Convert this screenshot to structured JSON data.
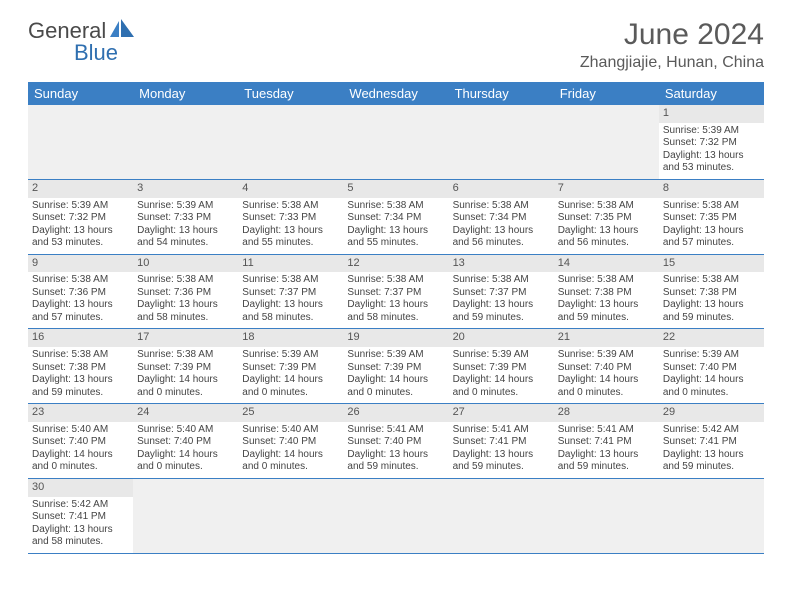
{
  "logo": {
    "text1": "General",
    "text2": "Blue"
  },
  "title": "June 2024",
  "location": "Zhangjiajie, Hunan, China",
  "colors": {
    "header_bg": "#3b7fc4",
    "header_fg": "#ffffff",
    "daynum_bg": "#e8e8e8",
    "empty_bg": "#f0f0f0",
    "border": "#3b7fc4",
    "logo_gray": "#4a4a4a",
    "logo_blue": "#2f6fb0"
  },
  "day_headers": [
    "Sunday",
    "Monday",
    "Tuesday",
    "Wednesday",
    "Thursday",
    "Friday",
    "Saturday"
  ],
  "weeks": [
    [
      null,
      null,
      null,
      null,
      null,
      null,
      {
        "n": "1",
        "sr": "Sunrise: 5:39 AM",
        "ss": "Sunset: 7:32 PM",
        "dl": "Daylight: 13 hours and 53 minutes."
      }
    ],
    [
      {
        "n": "2",
        "sr": "Sunrise: 5:39 AM",
        "ss": "Sunset: 7:32 PM",
        "dl": "Daylight: 13 hours and 53 minutes."
      },
      {
        "n": "3",
        "sr": "Sunrise: 5:39 AM",
        "ss": "Sunset: 7:33 PM",
        "dl": "Daylight: 13 hours and 54 minutes."
      },
      {
        "n": "4",
        "sr": "Sunrise: 5:38 AM",
        "ss": "Sunset: 7:33 PM",
        "dl": "Daylight: 13 hours and 55 minutes."
      },
      {
        "n": "5",
        "sr": "Sunrise: 5:38 AM",
        "ss": "Sunset: 7:34 PM",
        "dl": "Daylight: 13 hours and 55 minutes."
      },
      {
        "n": "6",
        "sr": "Sunrise: 5:38 AM",
        "ss": "Sunset: 7:34 PM",
        "dl": "Daylight: 13 hours and 56 minutes."
      },
      {
        "n": "7",
        "sr": "Sunrise: 5:38 AM",
        "ss": "Sunset: 7:35 PM",
        "dl": "Daylight: 13 hours and 56 minutes."
      },
      {
        "n": "8",
        "sr": "Sunrise: 5:38 AM",
        "ss": "Sunset: 7:35 PM",
        "dl": "Daylight: 13 hours and 57 minutes."
      }
    ],
    [
      {
        "n": "9",
        "sr": "Sunrise: 5:38 AM",
        "ss": "Sunset: 7:36 PM",
        "dl": "Daylight: 13 hours and 57 minutes."
      },
      {
        "n": "10",
        "sr": "Sunrise: 5:38 AM",
        "ss": "Sunset: 7:36 PM",
        "dl": "Daylight: 13 hours and 58 minutes."
      },
      {
        "n": "11",
        "sr": "Sunrise: 5:38 AM",
        "ss": "Sunset: 7:37 PM",
        "dl": "Daylight: 13 hours and 58 minutes."
      },
      {
        "n": "12",
        "sr": "Sunrise: 5:38 AM",
        "ss": "Sunset: 7:37 PM",
        "dl": "Daylight: 13 hours and 58 minutes."
      },
      {
        "n": "13",
        "sr": "Sunrise: 5:38 AM",
        "ss": "Sunset: 7:37 PM",
        "dl": "Daylight: 13 hours and 59 minutes."
      },
      {
        "n": "14",
        "sr": "Sunrise: 5:38 AM",
        "ss": "Sunset: 7:38 PM",
        "dl": "Daylight: 13 hours and 59 minutes."
      },
      {
        "n": "15",
        "sr": "Sunrise: 5:38 AM",
        "ss": "Sunset: 7:38 PM",
        "dl": "Daylight: 13 hours and 59 minutes."
      }
    ],
    [
      {
        "n": "16",
        "sr": "Sunrise: 5:38 AM",
        "ss": "Sunset: 7:38 PM",
        "dl": "Daylight: 13 hours and 59 minutes."
      },
      {
        "n": "17",
        "sr": "Sunrise: 5:38 AM",
        "ss": "Sunset: 7:39 PM",
        "dl": "Daylight: 14 hours and 0 minutes."
      },
      {
        "n": "18",
        "sr": "Sunrise: 5:39 AM",
        "ss": "Sunset: 7:39 PM",
        "dl": "Daylight: 14 hours and 0 minutes."
      },
      {
        "n": "19",
        "sr": "Sunrise: 5:39 AM",
        "ss": "Sunset: 7:39 PM",
        "dl": "Daylight: 14 hours and 0 minutes."
      },
      {
        "n": "20",
        "sr": "Sunrise: 5:39 AM",
        "ss": "Sunset: 7:39 PM",
        "dl": "Daylight: 14 hours and 0 minutes."
      },
      {
        "n": "21",
        "sr": "Sunrise: 5:39 AM",
        "ss": "Sunset: 7:40 PM",
        "dl": "Daylight: 14 hours and 0 minutes."
      },
      {
        "n": "22",
        "sr": "Sunrise: 5:39 AM",
        "ss": "Sunset: 7:40 PM",
        "dl": "Daylight: 14 hours and 0 minutes."
      }
    ],
    [
      {
        "n": "23",
        "sr": "Sunrise: 5:40 AM",
        "ss": "Sunset: 7:40 PM",
        "dl": "Daylight: 14 hours and 0 minutes."
      },
      {
        "n": "24",
        "sr": "Sunrise: 5:40 AM",
        "ss": "Sunset: 7:40 PM",
        "dl": "Daylight: 14 hours and 0 minutes."
      },
      {
        "n": "25",
        "sr": "Sunrise: 5:40 AM",
        "ss": "Sunset: 7:40 PM",
        "dl": "Daylight: 14 hours and 0 minutes."
      },
      {
        "n": "26",
        "sr": "Sunrise: 5:41 AM",
        "ss": "Sunset: 7:40 PM",
        "dl": "Daylight: 13 hours and 59 minutes."
      },
      {
        "n": "27",
        "sr": "Sunrise: 5:41 AM",
        "ss": "Sunset: 7:41 PM",
        "dl": "Daylight: 13 hours and 59 minutes."
      },
      {
        "n": "28",
        "sr": "Sunrise: 5:41 AM",
        "ss": "Sunset: 7:41 PM",
        "dl": "Daylight: 13 hours and 59 minutes."
      },
      {
        "n": "29",
        "sr": "Sunrise: 5:42 AM",
        "ss": "Sunset: 7:41 PM",
        "dl": "Daylight: 13 hours and 59 minutes."
      }
    ],
    [
      {
        "n": "30",
        "sr": "Sunrise: 5:42 AM",
        "ss": "Sunset: 7:41 PM",
        "dl": "Daylight: 13 hours and 58 minutes."
      },
      null,
      null,
      null,
      null,
      null,
      null
    ]
  ]
}
